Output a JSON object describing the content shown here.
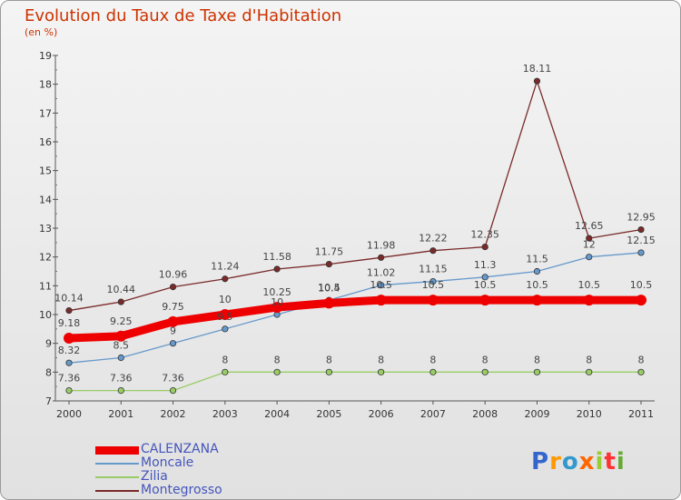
{
  "title": "Evolution du Taux de Taxe d'Habitation",
  "subtitle": "(en %)",
  "logo_text": "Proxiti",
  "chart_data": {
    "type": "line",
    "title": "Evolution du Taux de Taxe d'Habitation",
    "ylabel": "(en %)",
    "x": [
      "2000",
      "2001",
      "2002",
      "2003",
      "2004",
      "2005",
      "2006",
      "2007",
      "2008",
      "2009",
      "2010",
      "2011"
    ],
    "ylim": [
      7,
      19
    ],
    "yticks": [
      7,
      8,
      9,
      10,
      11,
      12,
      13,
      14,
      15,
      16,
      17,
      18,
      19
    ],
    "grid": false,
    "legend_position": "bottom-left",
    "series": [
      {
        "name": "CALENZANA",
        "color": "#ee0000",
        "values": [
          9.18,
          9.25,
          9.75,
          10,
          10.25,
          10.4,
          10.5,
          10.5,
          10.5,
          10.5,
          10.5,
          10.5
        ],
        "labels": [
          "9.18",
          "9.25",
          "9.75",
          "10",
          "10.25",
          "10.4",
          "10.5",
          "10.5",
          "10.5",
          "10.5",
          "10.5",
          "10.5"
        ]
      },
      {
        "name": "Moncale",
        "color": "#6699cc",
        "values": [
          8.32,
          8.5,
          9,
          9.5,
          10,
          10.5,
          11.02,
          11.15,
          11.3,
          11.5,
          12,
          12.15
        ],
        "labels": [
          "8.32",
          "8.5",
          "9",
          "9.5",
          "10",
          "10.5",
          "11.02",
          "11.15",
          "11.3",
          "11.5",
          "12",
          "12.15"
        ]
      },
      {
        "name": "Zilia",
        "color": "#99cc66",
        "values": [
          7.36,
          7.36,
          7.36,
          8,
          8,
          8,
          8,
          8,
          8,
          8,
          8,
          8
        ],
        "labels": [
          "7.36",
          "7.36",
          "7.36",
          "8",
          "8",
          "8",
          "8",
          "8",
          "8",
          "8",
          "8",
          "8"
        ]
      },
      {
        "name": "Montegrosso",
        "color": "#7a2a2a",
        "values": [
          10.14,
          10.44,
          10.96,
          11.24,
          11.58,
          11.75,
          11.98,
          12.22,
          12.35,
          18.11,
          12.65,
          12.95
        ],
        "labels": [
          "10.14",
          "10.44",
          "10.96",
          "11.24",
          "11.58",
          "11.75",
          "11.98",
          "12.22",
          "12.35",
          "18.11",
          "12.65",
          "12.95"
        ]
      }
    ]
  }
}
